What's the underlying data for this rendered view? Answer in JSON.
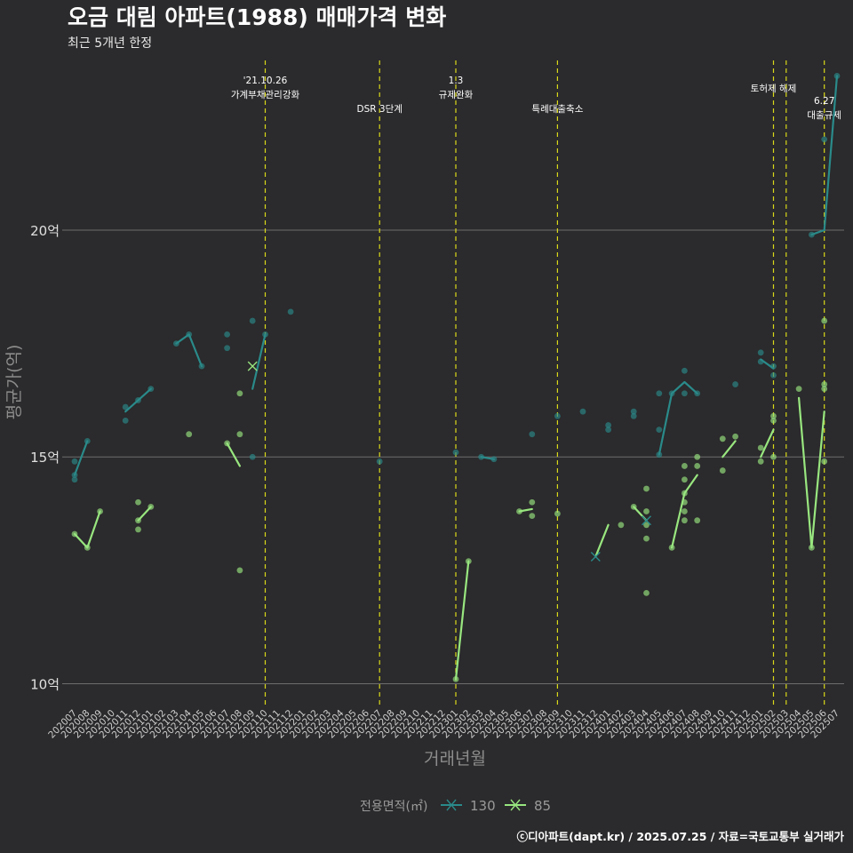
{
  "chart_data": {
    "type": "line",
    "title": "오금 대림 아파트(1988) 매매가격 변화",
    "subtitle": "최근 5개년 한정",
    "xlabel": "거래년월",
    "ylabel": "평균가(억)",
    "ylim": [
      9.5,
      23.8
    ],
    "ytick_values": [
      10,
      15,
      20
    ],
    "ytick_labels": [
      "10억",
      "15억",
      "20억"
    ],
    "legend_title": "전용면적(㎡)",
    "categories": [
      "202007",
      "202008",
      "202009",
      "202010",
      "202011",
      "202012",
      "202101",
      "202102",
      "202103",
      "202104",
      "202105",
      "202106",
      "202107",
      "202108",
      "202109",
      "202110",
      "202111",
      "202112",
      "202201",
      "202202",
      "202203",
      "202204",
      "202205",
      "202206",
      "202207",
      "202208",
      "202209",
      "202210",
      "202211",
      "202212",
      "202301",
      "202302",
      "202303",
      "202304",
      "202305",
      "202306",
      "202307",
      "202308",
      "202309",
      "202310",
      "202311",
      "202312",
      "202401",
      "202402",
      "202403",
      "202404",
      "202405",
      "202406",
      "202407",
      "202408",
      "202409",
      "202410",
      "202411",
      "202412",
      "202501",
      "202502",
      "202503",
      "202504",
      "202505",
      "202506",
      "202507"
    ],
    "series": [
      {
        "name": "130",
        "color": "#2a8a8a",
        "values": [
          14.6,
          15.35,
          null,
          null,
          16.0,
          16.25,
          16.5,
          null,
          17.5,
          17.7,
          17.0,
          null,
          17.55,
          null,
          16.5,
          17.7,
          null,
          18.2,
          null,
          null,
          null,
          null,
          null,
          null,
          14.9,
          null,
          null,
          null,
          null,
          null,
          15.1,
          null,
          15.0,
          14.95,
          null,
          null,
          15.5,
          null,
          15.9,
          null,
          16.0,
          null,
          15.7,
          null,
          15.95,
          null,
          15.05,
          16.4,
          16.65,
          16.4,
          null,
          null,
          16.6,
          null,
          17.15,
          16.95,
          null,
          null,
          19.9,
          20.0,
          23.4
        ]
      },
      {
        "name": "85",
        "color": "#98e67f",
        "values": [
          13.3,
          13.0,
          13.8,
          null,
          null,
          13.6,
          13.9,
          null,
          null,
          null,
          null,
          null,
          15.3,
          14.8,
          null,
          null,
          null,
          null,
          null,
          null,
          null,
          null,
          null,
          null,
          null,
          null,
          null,
          null,
          null,
          null,
          10.1,
          12.7,
          null,
          null,
          null,
          13.8,
          13.85,
          null,
          13.75,
          null,
          null,
          12.8,
          13.5,
          null,
          13.9,
          13.6,
          null,
          13.0,
          14.2,
          14.6,
          null,
          15.0,
          15.35,
          null,
          15.0,
          15.6,
          null,
          16.3,
          13.0,
          16.0,
          null
        ]
      }
    ],
    "scatter_points": [
      {
        "series": "130",
        "x": "202007",
        "y": 14.9
      },
      {
        "series": "130",
        "x": "202007",
        "y": 14.5
      },
      {
        "series": "130",
        "x": "202007",
        "y": 14.6
      },
      {
        "series": "130",
        "x": "202008",
        "y": 15.35
      },
      {
        "series": "130",
        "x": "202011",
        "y": 16.1
      },
      {
        "series": "130",
        "x": "202011",
        "y": 15.8
      },
      {
        "series": "130",
        "x": "202012",
        "y": 16.25
      },
      {
        "series": "130",
        "x": "202101",
        "y": 16.5
      },
      {
        "series": "130",
        "x": "202103",
        "y": 17.5
      },
      {
        "series": "130",
        "x": "202104",
        "y": 17.7
      },
      {
        "series": "130",
        "x": "202105",
        "y": 17.0
      },
      {
        "series": "130",
        "x": "202107",
        "y": 17.7
      },
      {
        "series": "130",
        "x": "202107",
        "y": 17.4
      },
      {
        "series": "130",
        "x": "202109",
        "y": 18.0
      },
      {
        "series": "130",
        "x": "202109",
        "y": 15.0
      },
      {
        "series": "130",
        "x": "202110",
        "y": 17.7
      },
      {
        "series": "130",
        "x": "202112",
        "y": 18.2
      },
      {
        "series": "130",
        "x": "202207",
        "y": 14.9
      },
      {
        "series": "130",
        "x": "202301",
        "y": 15.1
      },
      {
        "series": "130",
        "x": "202303",
        "y": 15.0
      },
      {
        "series": "130",
        "x": "202304",
        "y": 14.95
      },
      {
        "series": "130",
        "x": "202307",
        "y": 15.5
      },
      {
        "series": "130",
        "x": "202309",
        "y": 15.9
      },
      {
        "series": "130",
        "x": "202311",
        "y": 16.0
      },
      {
        "series": "130",
        "x": "202401",
        "y": 15.6
      },
      {
        "series": "130",
        "x": "202401",
        "y": 15.7
      },
      {
        "series": "130",
        "x": "202403",
        "y": 15.9
      },
      {
        "series": "130",
        "x": "202403",
        "y": 16.0
      },
      {
        "series": "130",
        "x": "202405",
        "y": 15.6
      },
      {
        "series": "130",
        "x": "202405",
        "y": 16.4
      },
      {
        "series": "130",
        "x": "202405",
        "y": 15.05
      },
      {
        "series": "130",
        "x": "202406",
        "y": 16.4
      },
      {
        "series": "130",
        "x": "202407",
        "y": 16.9
      },
      {
        "series": "130",
        "x": "202407",
        "y": 16.4
      },
      {
        "series": "130",
        "x": "202408",
        "y": 16.4
      },
      {
        "series": "130",
        "x": "202411",
        "y": 16.6
      },
      {
        "series": "130",
        "x": "202501",
        "y": 17.3
      },
      {
        "series": "130",
        "x": "202501",
        "y": 17.1
      },
      {
        "series": "130",
        "x": "202502",
        "y": 16.8
      },
      {
        "series": "130",
        "x": "202502",
        "y": 17.0
      },
      {
        "series": "130",
        "x": "202505",
        "y": 19.9
      },
      {
        "series": "130",
        "x": "202506",
        "y": 22.0
      },
      {
        "series": "130",
        "x": "202507",
        "y": 23.4
      },
      {
        "series": "85",
        "x": "202007",
        "y": 13.3
      },
      {
        "series": "85",
        "x": "202008",
        "y": 13.0
      },
      {
        "series": "85",
        "x": "202009",
        "y": 13.8
      },
      {
        "series": "85",
        "x": "202012",
        "y": 14.0
      },
      {
        "series": "85",
        "x": "202012",
        "y": 13.4
      },
      {
        "series": "85",
        "x": "202012",
        "y": 13.6
      },
      {
        "series": "85",
        "x": "202101",
        "y": 13.9
      },
      {
        "series": "85",
        "x": "202104",
        "y": 15.5
      },
      {
        "series": "85",
        "x": "202107",
        "y": 15.3
      },
      {
        "series": "85",
        "x": "202108",
        "y": 16.4
      },
      {
        "series": "85",
        "x": "202108",
        "y": 15.5
      },
      {
        "series": "85",
        "x": "202108",
        "y": 12.5
      },
      {
        "series": "85",
        "x": "202301",
        "y": 10.1
      },
      {
        "series": "85",
        "x": "202302",
        "y": 12.7
      },
      {
        "series": "85",
        "x": "202306",
        "y": 13.8
      },
      {
        "series": "85",
        "x": "202307",
        "y": 14.0
      },
      {
        "series": "85",
        "x": "202307",
        "y": 13.7
      },
      {
        "series": "85",
        "x": "202309",
        "y": 13.75
      },
      {
        "series": "85",
        "x": "202402",
        "y": 13.5
      },
      {
        "series": "85",
        "x": "202403",
        "y": 13.9
      },
      {
        "series": "85",
        "x": "202404",
        "y": 14.3
      },
      {
        "series": "85",
        "x": "202404",
        "y": 13.8
      },
      {
        "series": "85",
        "x": "202404",
        "y": 13.5
      },
      {
        "series": "85",
        "x": "202404",
        "y": 13.2
      },
      {
        "series": "85",
        "x": "202404",
        "y": 12.0
      },
      {
        "series": "85",
        "x": "202406",
        "y": 13.0
      },
      {
        "series": "85",
        "x": "202407",
        "y": 14.8
      },
      {
        "series": "85",
        "x": "202407",
        "y": 14.5
      },
      {
        "series": "85",
        "x": "202407",
        "y": 14.2
      },
      {
        "series": "85",
        "x": "202407",
        "y": 14.0
      },
      {
        "series": "85",
        "x": "202407",
        "y": 13.8
      },
      {
        "series": "85",
        "x": "202407",
        "y": 13.6
      },
      {
        "series": "85",
        "x": "202408",
        "y": 15.0
      },
      {
        "series": "85",
        "x": "202408",
        "y": 14.8
      },
      {
        "series": "85",
        "x": "202408",
        "y": 13.6
      },
      {
        "series": "85",
        "x": "202410",
        "y": 15.4
      },
      {
        "series": "85",
        "x": "202410",
        "y": 14.7
      },
      {
        "series": "85",
        "x": "202411",
        "y": 15.45
      },
      {
        "series": "85",
        "x": "202501",
        "y": 15.2
      },
      {
        "series": "85",
        "x": "202501",
        "y": 14.9
      },
      {
        "series": "85",
        "x": "202502",
        "y": 15.9
      },
      {
        "series": "85",
        "x": "202502",
        "y": 15.8
      },
      {
        "series": "85",
        "x": "202502",
        "y": 15.0
      },
      {
        "series": "85",
        "x": "202504",
        "y": 16.5
      },
      {
        "series": "85",
        "x": "202505",
        "y": 13.0
      },
      {
        "series": "85",
        "x": "202506",
        "y": 18.0
      },
      {
        "series": "85",
        "x": "202506",
        "y": 16.5
      },
      {
        "series": "85",
        "x": "202506",
        "y": 16.6
      },
      {
        "series": "85",
        "x": "202506",
        "y": 14.9
      }
    ],
    "cross_markers": [
      {
        "series": "130",
        "x": "202109",
        "y": 17.0
      },
      {
        "series": "85",
        "x": "202312",
        "y": 12.8
      },
      {
        "series": "85",
        "x": "202404",
        "y": 13.6
      }
    ],
    "event_lines": [
      {
        "x": "202110",
        "lines": [
          "'21.10.26",
          "가계부채관리강화"
        ],
        "row": 1
      },
      {
        "x": "202207",
        "lines": [
          "DSR 3단계"
        ],
        "row": 2
      },
      {
        "x": "202301",
        "lines": [
          "1.3",
          "규제완화"
        ],
        "row": 1
      },
      {
        "x": "202309",
        "lines": [
          "특례대출축소"
        ],
        "row": 2
      },
      {
        "x": "202502",
        "lines": [
          "토허제 해제"
        ],
        "row": 1
      },
      {
        "x": "202503",
        "lines": [],
        "row": 1
      },
      {
        "x": "202506",
        "lines": [
          "6.27",
          "대출규제"
        ],
        "row": 3
      }
    ],
    "caption": "ⓒ디아파트(dapt.kr) / 2025.07.25 / 자료=국토교통부 실거래가"
  }
}
